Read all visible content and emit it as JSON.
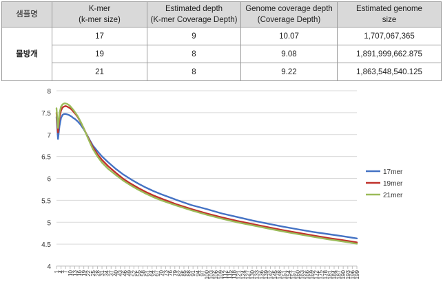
{
  "table": {
    "headers": [
      [
        "샘플명"
      ],
      [
        "K-mer",
        "(k-mer size)"
      ],
      [
        "Estimated depth",
        "(K-mer Coverage Depth)"
      ],
      [
        "Genome coverage depth",
        "(Coverage Depth)"
      ],
      [
        "Estimated genome",
        "size"
      ]
    ],
    "sample_name": "물방개",
    "rows": [
      [
        "17",
        "9",
        "10.07",
        "1,707,067,365"
      ],
      [
        "19",
        "8",
        "9.08",
        "1,891,999,662.875"
      ],
      [
        "21",
        "8",
        "9.22",
        "1,863,548,540.125"
      ]
    ]
  },
  "chart_data": {
    "type": "line",
    "title": "",
    "xlabel": "",
    "ylabel": "",
    "ylim": [
      4,
      8
    ],
    "yticks": [
      "8",
      "7.5",
      "7",
      "6.5",
      "6",
      "5.5",
      "5",
      "4.5",
      "4"
    ],
    "xlim": [
      1,
      199
    ],
    "xticks": [
      "1",
      "4",
      "7",
      "10",
      "13",
      "16",
      "19",
      "22",
      "25",
      "28",
      "31",
      "34",
      "37",
      "40",
      "43",
      "46",
      "49",
      "52",
      "55",
      "58",
      "61",
      "64",
      "67",
      "70",
      "73",
      "76",
      "79",
      "82",
      "85",
      "88",
      "91",
      "94",
      "97",
      "100",
      "103",
      "106",
      "109",
      "112",
      "115",
      "118",
      "121",
      "124",
      "127",
      "130",
      "133",
      "136",
      "139",
      "142",
      "145",
      "148",
      "151",
      "154",
      "157",
      "160",
      "163",
      "166",
      "169",
      "172",
      "175",
      "178",
      "181",
      "184",
      "187",
      "190",
      "193",
      "196",
      "199"
    ],
    "grid": true,
    "legend_position": "right",
    "series": [
      {
        "name": "17mer",
        "color": "#4472c4",
        "x": [
          1,
          2,
          3,
          4,
          5,
          6,
          7,
          8,
          9,
          10,
          11,
          12,
          13,
          14,
          15,
          17,
          19,
          21,
          23,
          25,
          28,
          31,
          35,
          40,
          45,
          50,
          55,
          60,
          65,
          70,
          80,
          90,
          100,
          110,
          120,
          130,
          140,
          150,
          160,
          170,
          180,
          190,
          199
        ],
        "y": [
          7.4,
          6.9,
          7.2,
          7.38,
          7.45,
          7.47,
          7.47,
          7.46,
          7.45,
          7.43,
          7.41,
          7.38,
          7.36,
          7.33,
          7.3,
          7.22,
          7.12,
          7.0,
          6.87,
          6.75,
          6.62,
          6.5,
          6.37,
          6.22,
          6.09,
          5.98,
          5.88,
          5.79,
          5.71,
          5.64,
          5.51,
          5.39,
          5.3,
          5.2,
          5.12,
          5.04,
          4.97,
          4.9,
          4.84,
          4.78,
          4.73,
          4.68,
          4.63
        ]
      },
      {
        "name": "19mer",
        "color": "#c0312b",
        "x": [
          1,
          2,
          3,
          4,
          5,
          6,
          7,
          8,
          9,
          10,
          11,
          12,
          13,
          14,
          15,
          17,
          19,
          21,
          23,
          25,
          28,
          31,
          35,
          40,
          45,
          50,
          55,
          60,
          65,
          70,
          80,
          90,
          100,
          110,
          120,
          130,
          140,
          150,
          160,
          170,
          180,
          190,
          199
        ],
        "y": [
          7.5,
          7.05,
          7.4,
          7.55,
          7.62,
          7.64,
          7.65,
          7.64,
          7.62,
          7.6,
          7.57,
          7.53,
          7.49,
          7.45,
          7.4,
          7.28,
          7.14,
          6.99,
          6.85,
          6.71,
          6.55,
          6.42,
          6.28,
          6.13,
          5.99,
          5.88,
          5.78,
          5.69,
          5.61,
          5.54,
          5.41,
          5.3,
          5.2,
          5.11,
          5.03,
          4.96,
          4.89,
          4.82,
          4.76,
          4.7,
          4.64,
          4.59,
          4.54
        ]
      },
      {
        "name": "21mer",
        "color": "#9bbb59",
        "x": [
          1,
          2,
          3,
          4,
          5,
          6,
          7,
          8,
          9,
          10,
          11,
          12,
          13,
          14,
          15,
          17,
          19,
          21,
          23,
          25,
          28,
          31,
          35,
          40,
          45,
          50,
          55,
          60,
          65,
          70,
          80,
          90,
          100,
          110,
          120,
          130,
          140,
          150,
          160,
          170,
          180,
          190,
          199
        ],
        "y": [
          7.6,
          7.15,
          7.5,
          7.64,
          7.69,
          7.71,
          7.71,
          7.7,
          7.68,
          7.65,
          7.61,
          7.57,
          7.52,
          7.47,
          7.42,
          7.29,
          7.14,
          6.98,
          6.82,
          6.67,
          6.5,
          6.36,
          6.22,
          6.08,
          5.95,
          5.84,
          5.74,
          5.65,
          5.57,
          5.5,
          5.38,
          5.27,
          5.17,
          5.08,
          5.0,
          4.93,
          4.86,
          4.79,
          4.73,
          4.67,
          4.61,
          4.56,
          4.51
        ]
      }
    ]
  }
}
